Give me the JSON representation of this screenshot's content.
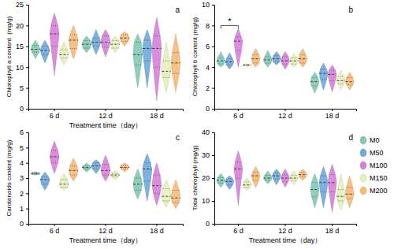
{
  "chart_data": [
    {
      "type": "violin",
      "title": "a",
      "ylabel": "Chlorophyll a content  (mg/g)",
      "xlabel": "Treatment time（day）",
      "categories": [
        "6 d",
        "12 d",
        "18 d"
      ],
      "ylim": [
        0,
        25
      ],
      "yticks": [
        0,
        5,
        10,
        15,
        20,
        25
      ],
      "legend": "right",
      "series": [
        {
          "name": "M0",
          "color": "#83C9B5",
          "values": [
            {
              "min": 12,
              "q1": 13.6,
              "median": 14.3,
              "q3": 15.2,
              "max": 16.5
            },
            {
              "min": 13.5,
              "q1": 14.6,
              "median": 15.5,
              "q3": 16.4,
              "max": 17.5
            },
            {
              "min": 5,
              "q1": 10.5,
              "median": 13,
              "q3": 16,
              "max": 18
            }
          ]
        },
        {
          "name": "M50",
          "color": "#6FA8DC",
          "values": [
            {
              "min": 11,
              "q1": 13,
              "median": 14,
              "q3": 15,
              "max": 16.5
            },
            {
              "min": 13,
              "q1": 15,
              "median": 16,
              "q3": 17,
              "max": 19
            },
            {
              "min": 5,
              "q1": 11.5,
              "median": 14.5,
              "q3": 16.5,
              "max": 19
            }
          ]
        },
        {
          "name": "M100",
          "color": "#D77FD9",
          "values": [
            {
              "min": 8,
              "q1": 15,
              "median": 18,
              "q3": 20,
              "max": 23
            },
            {
              "min": 12.5,
              "q1": 14.8,
              "median": 16,
              "q3": 17.5,
              "max": 19
            },
            {
              "min": 2,
              "q1": 10,
              "median": 14.5,
              "q3": 17.5,
              "max": 22
            }
          ]
        },
        {
          "name": "M150",
          "color": "#E6EFBA",
          "values": [
            {
              "min": 10.5,
              "q1": 12.2,
              "median": 13,
              "q3": 14.2,
              "max": 16
            },
            {
              "min": 13.5,
              "q1": 14.6,
              "median": 15.5,
              "q3": 16.4,
              "max": 17.5
            },
            {
              "min": 4,
              "q1": 7.5,
              "median": 9,
              "q3": 11.5,
              "max": 16
            }
          ]
        },
        {
          "name": "M200",
          "color": "#F7B977",
          "values": [
            {
              "min": 12,
              "q1": 14.5,
              "median": 16.5,
              "q3": 17.8,
              "max": 20
            },
            {
              "min": 15,
              "q1": 16.2,
              "median": 17,
              "q3": 17.8,
              "max": 18.5
            },
            {
              "min": 4,
              "q1": 8.5,
              "median": 11,
              "q3": 13.5,
              "max": 18
            }
          ]
        }
      ]
    },
    {
      "type": "violin",
      "title": "b",
      "ylabel": "Chlorophyll b content (mg/g)",
      "categories": [
        "6 d",
        "12 d",
        "18 d"
      ],
      "ylim": [
        0,
        10
      ],
      "yticks": [
        0,
        2,
        4,
        6,
        8,
        10
      ],
      "annotations": [
        {
          "text": "*",
          "category": "6 d",
          "from": "M0",
          "to": "M100",
          "y": 8
        }
      ],
      "series": [
        {
          "color": "#83C9B5",
          "values": [
            {
              "min": 4,
              "q1": 4.3,
              "median": 4.6,
              "q3": 4.9,
              "max": 5.5
            },
            {
              "min": 4,
              "q1": 4.4,
              "median": 4.7,
              "q3": 5,
              "max": 5.6
            },
            {
              "min": 1.5,
              "q1": 2.2,
              "median": 2.6,
              "q3": 3,
              "max": 3.5
            }
          ]
        },
        {
          "color": "#6FA8DC",
          "values": [
            {
              "min": 3.8,
              "q1": 4.2,
              "median": 4.5,
              "q3": 4.8,
              "max": 5.4
            },
            {
              "min": 4.2,
              "q1": 4.5,
              "median": 4.8,
              "q3": 5.1,
              "max": 5.5
            },
            {
              "min": 1.8,
              "q1": 2.8,
              "median": 3.4,
              "q3": 3.8,
              "max": 4.4
            }
          ]
        },
        {
          "color": "#D77FD9",
          "values": [
            {
              "min": 4,
              "q1": 5.6,
              "median": 6.5,
              "q3": 6.9,
              "max": 7.7
            },
            {
              "min": 3.8,
              "q1": 4.3,
              "median": 4.6,
              "q3": 5,
              "max": 5.5
            },
            {
              "min": 1.6,
              "q1": 2.7,
              "median": 3.3,
              "q3": 3.7,
              "max": 4.2
            }
          ]
        },
        {
          "color": "#E6EFBA",
          "values": [
            {
              "min": 4.1,
              "q1": 4.15,
              "median": 4.2,
              "q3": 4.25,
              "max": 4.3
            },
            {
              "min": 4,
              "q1": 4.3,
              "median": 4.6,
              "q3": 4.9,
              "max": 5.3
            },
            {
              "min": 1.8,
              "q1": 2.4,
              "median": 2.7,
              "q3": 3.1,
              "max": 3.7
            }
          ]
        },
        {
          "color": "#F7B977",
          "values": [
            {
              "min": 4,
              "q1": 4.4,
              "median": 4.8,
              "q3": 5.2,
              "max": 5.8
            },
            {
              "min": 4,
              "q1": 4.4,
              "median": 4.8,
              "q3": 5.2,
              "max": 5.8
            },
            {
              "min": 1.8,
              "q1": 2.3,
              "median": 2.6,
              "q3": 3,
              "max": 3.5
            }
          ]
        }
      ]
    },
    {
      "type": "violin",
      "title": "c",
      "ylabel": "Carotenoids content (mg/g)",
      "xlabel": "Treatment time（day）",
      "categories": [
        "6 d",
        "12 d",
        "18 d"
      ],
      "ylim": [
        0,
        6
      ],
      "yticks": [
        0,
        1,
        2,
        3,
        4,
        5,
        6
      ],
      "series": [
        {
          "color": "#83C9B5",
          "values": [
            {
              "min": 3.2,
              "q1": 3.25,
              "median": 3.3,
              "q3": 3.35,
              "max": 3.4
            },
            {
              "min": 3.4,
              "q1": 3.6,
              "median": 3.7,
              "q3": 3.8,
              "max": 4
            },
            {
              "min": 1.6,
              "q1": 2.2,
              "median": 2.6,
              "q3": 3,
              "max": 3.6
            }
          ]
        },
        {
          "color": "#6FA8DC",
          "values": [
            {
              "min": 2.2,
              "q1": 2.6,
              "median": 2.9,
              "q3": 3.1,
              "max": 3.4
            },
            {
              "min": 3.3,
              "q1": 3.6,
              "median": 3.8,
              "q3": 4,
              "max": 4.2
            },
            {
              "min": 1.5,
              "q1": 2.8,
              "median": 3.6,
              "q3": 4,
              "max": 4.6
            }
          ]
        },
        {
          "color": "#D77FD9",
          "values": [
            {
              "min": 3.3,
              "q1": 4,
              "median": 4.4,
              "q3": 4.8,
              "max": 5.4
            },
            {
              "min": 2.8,
              "q1": 3.2,
              "median": 3.5,
              "q3": 3.9,
              "max": 4.5
            },
            {
              "min": 1.2,
              "q1": 2,
              "median": 2.5,
              "q3": 3.2,
              "max": 4
            }
          ]
        },
        {
          "color": "#E6EFBA",
          "values": [
            {
              "min": 2.2,
              "q1": 2.4,
              "median": 2.6,
              "q3": 2.9,
              "max": 3.3
            },
            {
              "min": 2.9,
              "q1": 3.1,
              "median": 3.2,
              "q3": 3.3,
              "max": 3.5
            },
            {
              "min": 1.1,
              "q1": 1.5,
              "median": 1.8,
              "q3": 2.3,
              "max": 2.9
            }
          ]
        },
        {
          "color": "#F7B977",
          "values": [
            {
              "min": 2.8,
              "q1": 3.2,
              "median": 3.5,
              "q3": 3.8,
              "max": 4.3
            },
            {
              "min": 3.4,
              "q1": 3.6,
              "median": 3.7,
              "q3": 3.85,
              "max": 4
            },
            {
              "min": 1,
              "q1": 1.4,
              "median": 1.7,
              "q3": 2.2,
              "max": 2.9
            }
          ]
        }
      ]
    },
    {
      "type": "violin",
      "title": "d",
      "ylabel": "Total chlorophyll (mg/g)",
      "xlabel": "Treatment time（day）",
      "categories": [
        "6 d",
        "12 d",
        "18 d"
      ],
      "ylim": [
        0,
        40
      ],
      "yticks": [
        0,
        10,
        20,
        30,
        40
      ],
      "series": [
        {
          "color": "#83C9B5",
          "values": [
            {
              "min": 16,
              "q1": 17.8,
              "median": 19,
              "q3": 20.2,
              "max": 22
            },
            {
              "min": 17.5,
              "q1": 19,
              "median": 20,
              "q3": 21.2,
              "max": 23
            },
            {
              "min": 7,
              "q1": 12,
              "median": 15,
              "q3": 18,
              "max": 22
            }
          ]
        },
        {
          "color": "#6FA8DC",
          "values": [
            {
              "min": 15,
              "q1": 17,
              "median": 18.5,
              "q3": 19.7,
              "max": 21
            },
            {
              "min": 17,
              "q1": 19.5,
              "median": 21,
              "q3": 22.2,
              "max": 24
            },
            {
              "min": 7,
              "q1": 14,
              "median": 18,
              "q3": 21,
              "max": 25
            }
          ]
        },
        {
          "color": "#D77FD9",
          "values": [
            {
              "min": 8,
              "q1": 20,
              "median": 24,
              "q3": 27,
              "max": 32
            },
            {
              "min": 16,
              "q1": 18.5,
              "median": 20,
              "q3": 21.5,
              "max": 24
            },
            {
              "min": 5,
              "q1": 14,
              "median": 18,
              "q3": 21.5,
              "max": 26
            }
          ]
        },
        {
          "color": "#E6EFBA",
          "values": [
            {
              "min": 14.5,
              "q1": 16,
              "median": 17,
              "q3": 18.3,
              "max": 20
            },
            {
              "min": 17,
              "q1": 19,
              "median": 20,
              "q3": 21.2,
              "max": 23
            },
            {
              "min": 6,
              "q1": 10,
              "median": 12,
              "q3": 15,
              "max": 22
            }
          ]
        },
        {
          "color": "#F7B977",
          "values": [
            {
              "min": 16,
              "q1": 19,
              "median": 21,
              "q3": 22.5,
              "max": 25
            },
            {
              "min": 19,
              "q1": 20.5,
              "median": 21.5,
              "q3": 22.5,
              "max": 24
            },
            {
              "min": 7,
              "q1": 11,
              "median": 13,
              "q3": 16,
              "max": 21
            }
          ]
        }
      ]
    }
  ]
}
